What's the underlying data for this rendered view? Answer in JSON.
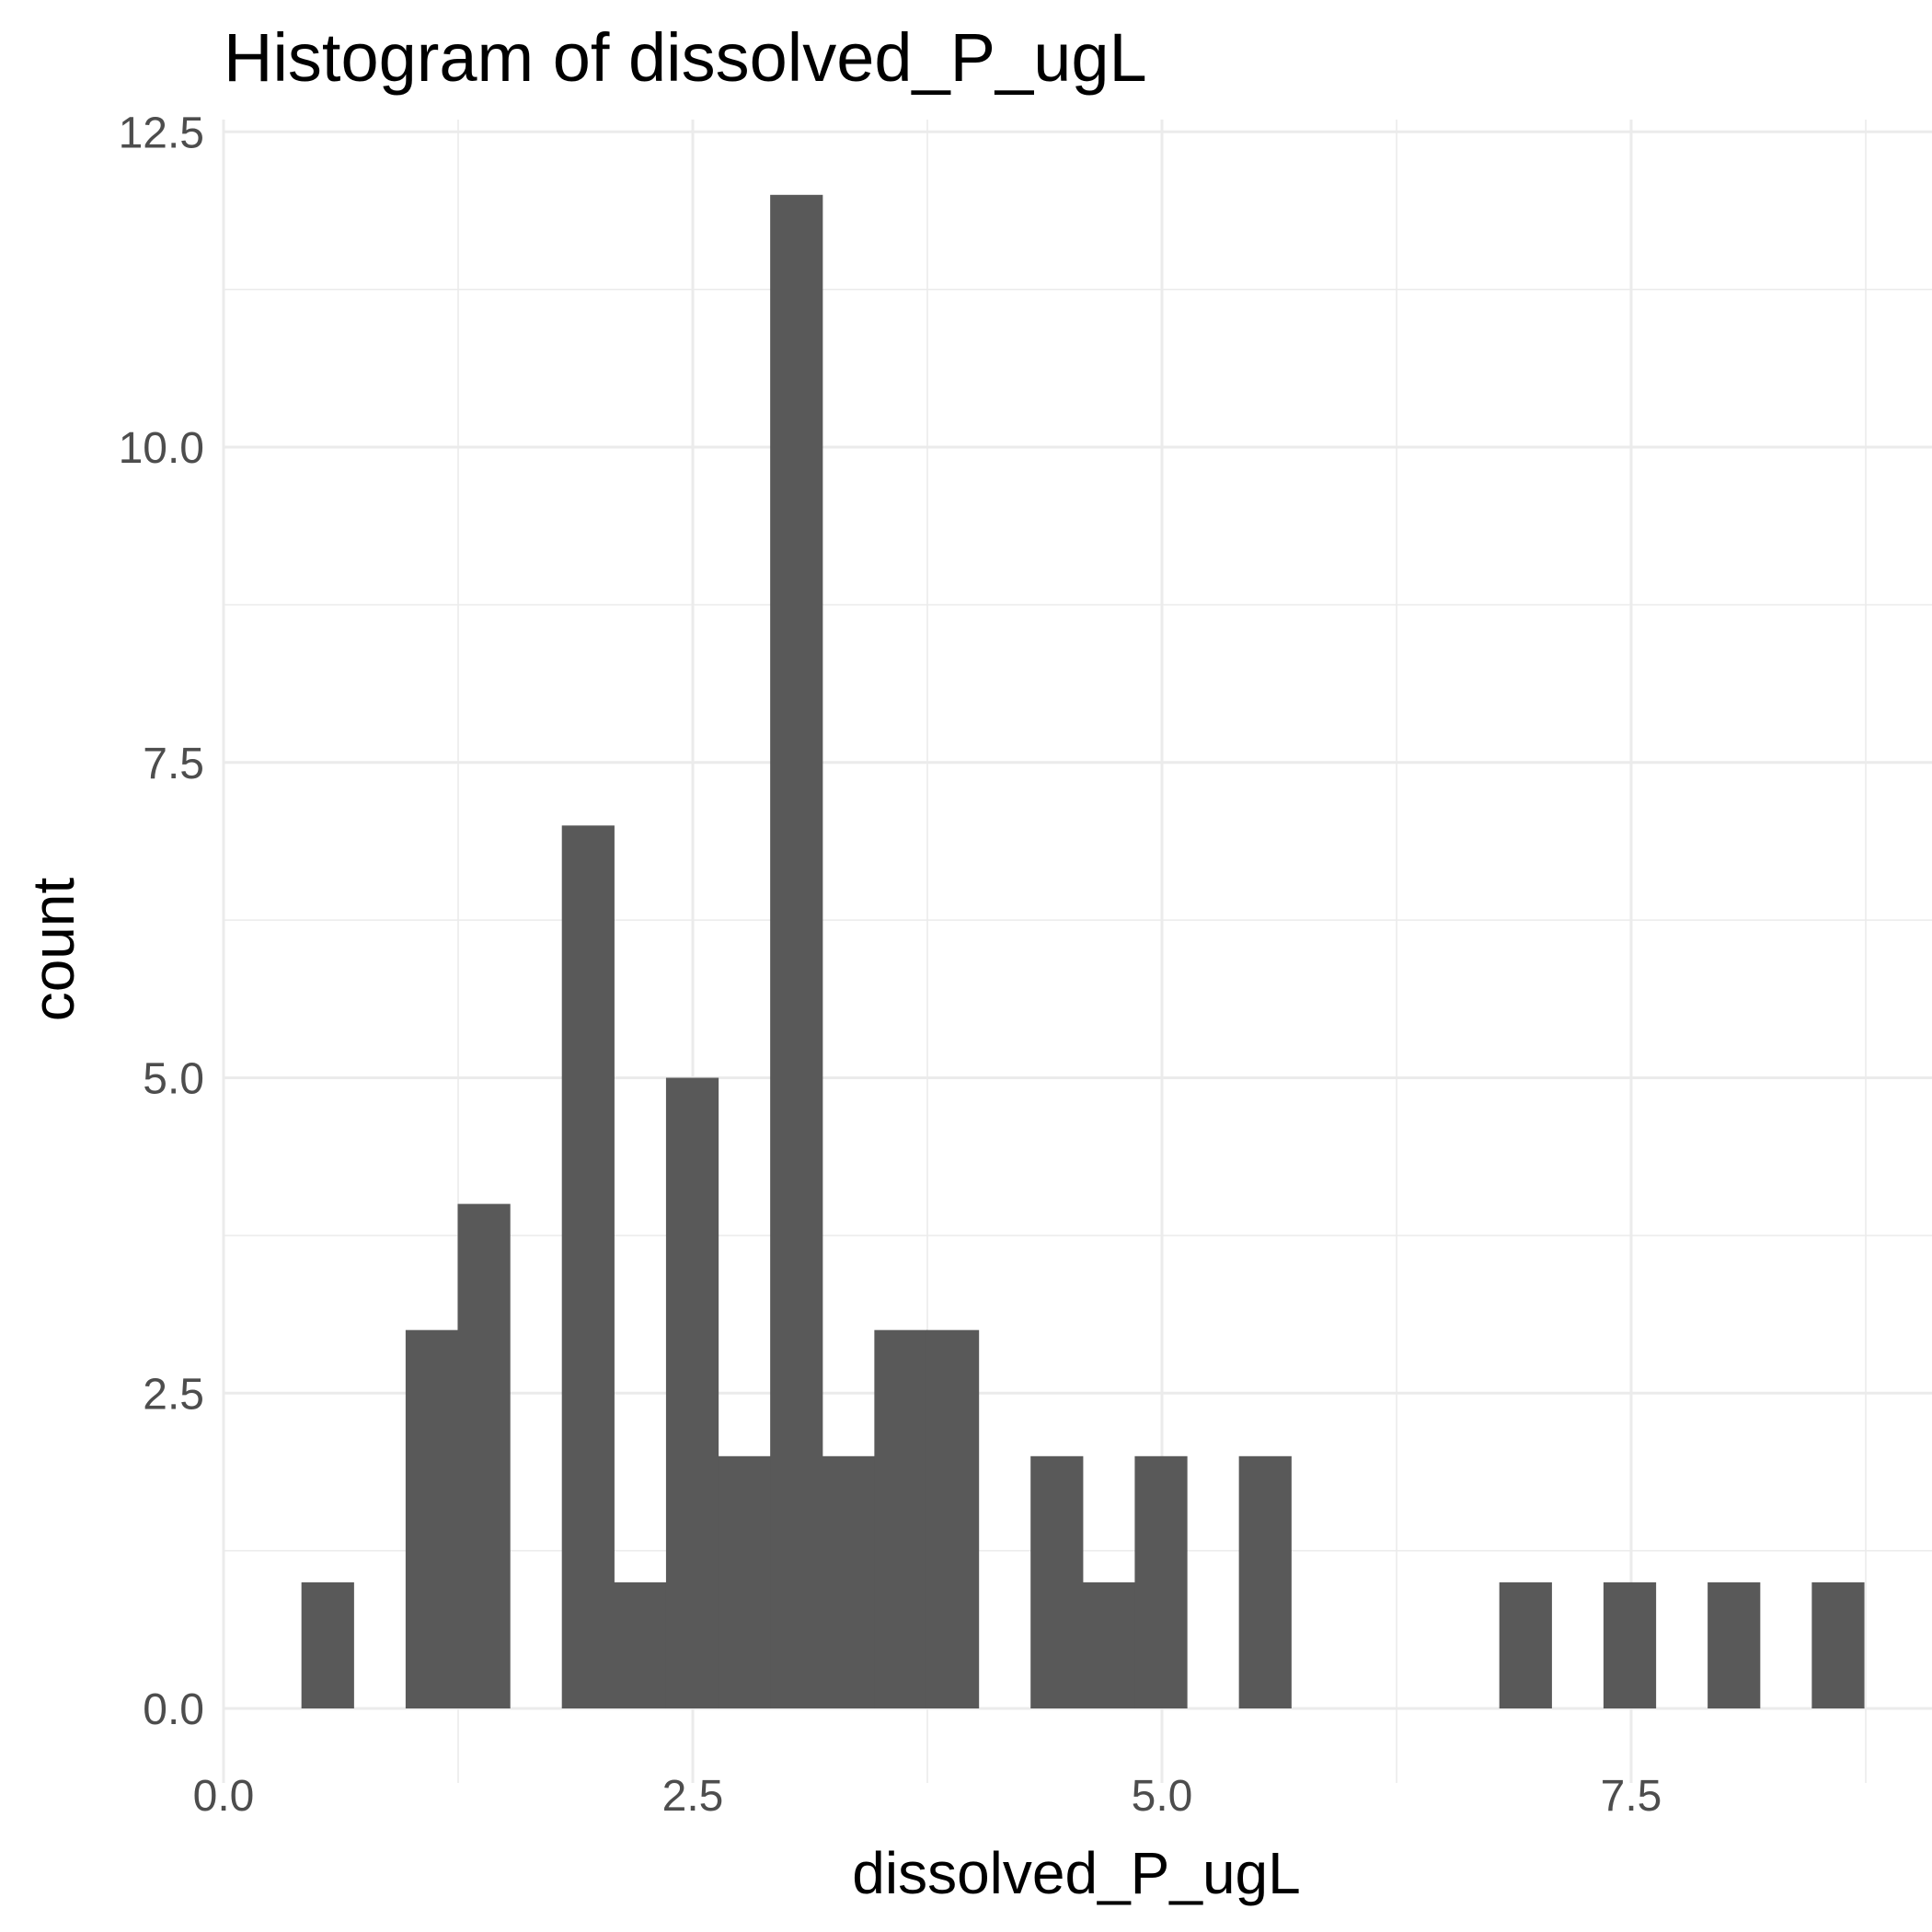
{
  "chart_data": {
    "type": "bar",
    "title": "Histogram of  dissolved_P_ugL",
    "xlabel": "dissolved_P_ugL",
    "ylabel": "count",
    "xlim": [
      0,
      9.0
    ],
    "ylim": [
      -0.55,
      12.7
    ],
    "x_ticks": [
      0.0,
      2.5,
      5.0,
      7.5
    ],
    "x_tick_labels": [
      "0.0",
      "2.5",
      "5.0",
      "7.5"
    ],
    "x_minor_ticks": [
      1.25,
      3.75,
      6.25,
      8.75
    ],
    "y_ticks": [
      0.0,
      2.5,
      5.0,
      7.5,
      10.0,
      12.5
    ],
    "y_tick_labels": [
      "0.0",
      "2.5",
      "5.0",
      "7.5",
      "10.0",
      "12.5"
    ],
    "y_minor_ticks": [
      1.25,
      3.75,
      6.25,
      8.75,
      11.25
    ],
    "grid": true,
    "bar_color": "#595959",
    "bin_width": 0.2775,
    "bins": [
      {
        "start": 0.415,
        "end": 0.6925,
        "count": 1
      },
      {
        "start": 0.97,
        "end": 1.2475,
        "count": 3
      },
      {
        "start": 1.2475,
        "end": 1.525,
        "count": 4
      },
      {
        "start": 1.8025,
        "end": 2.08,
        "count": 7
      },
      {
        "start": 2.08,
        "end": 2.3575,
        "count": 1
      },
      {
        "start": 2.3575,
        "end": 2.635,
        "count": 5
      },
      {
        "start": 2.635,
        "end": 2.9125,
        "count": 2
      },
      {
        "start": 2.9125,
        "end": 3.19,
        "count": 12
      },
      {
        "start": 3.19,
        "end": 3.4675,
        "count": 2
      },
      {
        "start": 3.4675,
        "end": 3.745,
        "count": 3
      },
      {
        "start": 3.745,
        "end": 4.0225,
        "count": 3
      },
      {
        "start": 4.3,
        "end": 4.5775,
        "count": 2
      },
      {
        "start": 4.5775,
        "end": 4.855,
        "count": 1
      },
      {
        "start": 4.855,
        "end": 5.1325,
        "count": 2
      },
      {
        "start": 5.41,
        "end": 5.6875,
        "count": 2
      },
      {
        "start": 6.7975,
        "end": 7.075,
        "count": 1
      },
      {
        "start": 7.3525,
        "end": 7.63,
        "count": 1
      },
      {
        "start": 7.9075,
        "end": 8.185,
        "count": 1
      },
      {
        "start": 8.4625,
        "end": 8.74,
        "count": 1
      }
    ]
  }
}
